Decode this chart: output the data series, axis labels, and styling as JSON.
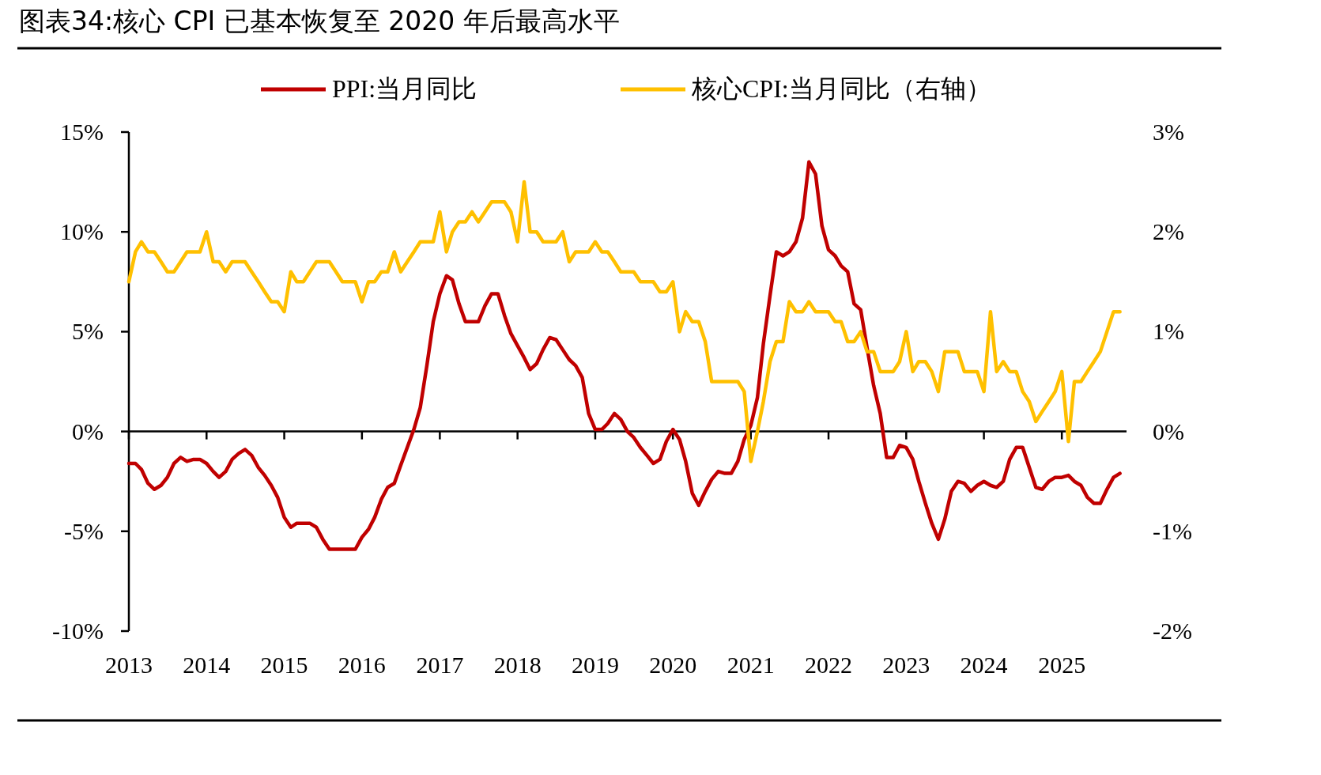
{
  "chart_data": {
    "type": "line",
    "title": "图表34:核心 CPI 已基本恢复至 2020 年后最高水平",
    "legend": "top",
    "x": [
      "2013-01",
      "2013-02",
      "2013-03",
      "2013-04",
      "2013-05",
      "2013-06",
      "2013-07",
      "2013-08",
      "2013-09",
      "2013-10",
      "2013-11",
      "2013-12",
      "2014-01",
      "2014-02",
      "2014-03",
      "2014-04",
      "2014-05",
      "2014-06",
      "2014-07",
      "2014-08",
      "2014-09",
      "2014-10",
      "2014-11",
      "2014-12",
      "2015-01",
      "2015-02",
      "2015-03",
      "2015-04",
      "2015-05",
      "2015-06",
      "2015-07",
      "2015-08",
      "2015-09",
      "2015-10",
      "2015-11",
      "2015-12",
      "2016-01",
      "2016-02",
      "2016-03",
      "2016-04",
      "2016-05",
      "2016-06",
      "2016-07",
      "2016-08",
      "2016-09",
      "2016-10",
      "2016-11",
      "2016-12",
      "2017-01",
      "2017-02",
      "2017-03",
      "2017-04",
      "2017-05",
      "2017-06",
      "2017-07",
      "2017-08",
      "2017-09",
      "2017-10",
      "2017-11",
      "2017-12",
      "2018-01",
      "2018-02",
      "2018-03",
      "2018-04",
      "2018-05",
      "2018-06",
      "2018-07",
      "2018-08",
      "2018-09",
      "2018-10",
      "2018-11",
      "2018-12",
      "2019-01",
      "2019-02",
      "2019-03",
      "2019-04",
      "2019-05",
      "2019-06",
      "2019-07",
      "2019-08",
      "2019-09",
      "2019-10",
      "2019-11",
      "2019-12",
      "2020-01",
      "2020-02",
      "2020-03",
      "2020-04",
      "2020-05",
      "2020-06",
      "2020-07",
      "2020-08",
      "2020-09",
      "2020-10",
      "2020-11",
      "2020-12",
      "2021-01",
      "2021-02",
      "2021-03",
      "2021-04",
      "2021-05",
      "2021-06",
      "2021-07",
      "2021-08",
      "2021-09",
      "2021-10",
      "2021-11",
      "2021-12",
      "2022-01",
      "2022-02",
      "2022-03",
      "2022-04",
      "2022-05",
      "2022-06",
      "2022-07",
      "2022-08",
      "2022-09",
      "2022-10",
      "2022-11",
      "2022-12",
      "2023-01",
      "2023-02",
      "2023-03",
      "2023-04",
      "2023-05",
      "2023-06",
      "2023-07",
      "2023-08",
      "2023-09",
      "2023-10",
      "2023-11",
      "2023-12",
      "2024-01",
      "2024-02",
      "2024-03",
      "2024-04",
      "2024-05",
      "2024-06",
      "2024-07",
      "2024-08",
      "2024-09",
      "2024-10",
      "2024-11",
      "2024-12",
      "2025-01",
      "2025-02",
      "2025-03",
      "2025-04",
      "2025-05",
      "2025-06",
      "2025-07",
      "2025-08",
      "2025-09",
      "2025-10"
    ],
    "xlim": [
      "2013-01",
      "2025-11"
    ],
    "xticks": [
      "2013",
      "2014",
      "2015",
      "2016",
      "2017",
      "2018",
      "2019",
      "2020",
      "2021",
      "2022",
      "2023",
      "2024",
      "2025"
    ],
    "ylim": [
      -10,
      15
    ],
    "yticks": [
      {
        "value": -10,
        "label": "-10%"
      },
      {
        "value": -5,
        "label": "-5%"
      },
      {
        "value": 0,
        "label": "0%"
      },
      {
        "value": 5,
        "label": "5%"
      },
      {
        "value": 10,
        "label": "10%"
      },
      {
        "value": 15,
        "label": "15%"
      }
    ],
    "y2lim": [
      -2,
      3
    ],
    "y2ticks": [
      {
        "value": -2,
        "label": "-2%"
      },
      {
        "value": -1,
        "label": "-1%"
      },
      {
        "value": 0,
        "label": "0%"
      },
      {
        "value": 1,
        "label": "1%"
      },
      {
        "value": 2,
        "label": "2%"
      },
      {
        "value": 3,
        "label": "3%"
      }
    ],
    "series": [
      {
        "name": "PPI:当月同比",
        "color": "#c00000",
        "values": [
          -1.6,
          -1.6,
          -1.9,
          -2.6,
          -2.9,
          -2.7,
          -2.3,
          -1.6,
          -1.3,
          -1.5,
          -1.4,
          -1.4,
          -1.6,
          -2.0,
          -2.3,
          -2.0,
          -1.4,
          -1.1,
          -0.9,
          -1.2,
          -1.8,
          -2.2,
          -2.7,
          -3.3,
          -4.3,
          -4.8,
          -4.6,
          -4.6,
          -4.6,
          -4.8,
          -5.4,
          -5.9,
          -5.9,
          -5.9,
          -5.9,
          -5.9,
          -5.3,
          -4.9,
          -4.3,
          -3.4,
          -2.8,
          -2.6,
          -1.7,
          -0.8,
          0.1,
          1.2,
          3.3,
          5.5,
          6.9,
          7.8,
          7.6,
          6.4,
          5.5,
          5.5,
          5.5,
          6.3,
          6.9,
          6.9,
          5.8,
          4.9,
          4.3,
          3.7,
          3.1,
          3.4,
          4.1,
          4.7,
          4.6,
          4.1,
          3.6,
          3.3,
          2.7,
          0.9,
          0.1,
          0.1,
          0.4,
          0.9,
          0.6,
          0.0,
          -0.3,
          -0.8,
          -1.2,
          -1.6,
          -1.4,
          -0.5,
          0.1,
          -0.4,
          -1.5,
          -3.1,
          -3.7,
          -3.0,
          -2.4,
          -2.0,
          -2.1,
          -2.1,
          -1.5,
          -0.4,
          0.3,
          1.7,
          4.4,
          6.8,
          9.0,
          8.8,
          9.0,
          9.5,
          10.7,
          13.5,
          12.9,
          10.3,
          9.1,
          8.8,
          8.3,
          8.0,
          6.4,
          6.1,
          4.2,
          2.3,
          0.9,
          -1.3,
          -1.3,
          -0.7,
          -0.8,
          -1.4,
          -2.5,
          -3.6,
          -4.6,
          -5.4,
          -4.4,
          -3.0,
          -2.5,
          -2.6,
          -3.0,
          -2.7,
          -2.5,
          -2.7,
          -2.8,
          -2.5,
          -1.4,
          -0.8,
          -0.8,
          -1.8,
          -2.8,
          -2.9,
          -2.5,
          -2.3,
          -2.3,
          -2.2,
          -2.5,
          -2.7,
          -3.3,
          -3.6,
          -3.6,
          -2.9,
          -2.3,
          -2.1
        ]
      },
      {
        "name": "核心CPI:当月同比（右轴）",
        "color": "#ffc000",
        "axis": "y2",
        "values": [
          1.5,
          1.8,
          1.9,
          1.8,
          1.8,
          1.7,
          1.6,
          1.6,
          1.7,
          1.8,
          1.8,
          1.8,
          2.0,
          1.7,
          1.7,
          1.6,
          1.7,
          1.7,
          1.7,
          1.6,
          1.5,
          1.4,
          1.3,
          1.3,
          1.2,
          1.6,
          1.5,
          1.5,
          1.6,
          1.7,
          1.7,
          1.7,
          1.6,
          1.5,
          1.5,
          1.5,
          1.3,
          1.5,
          1.5,
          1.6,
          1.6,
          1.8,
          1.6,
          1.7,
          1.8,
          1.9,
          1.9,
          1.9,
          2.2,
          1.8,
          2.0,
          2.1,
          2.1,
          2.2,
          2.1,
          2.2,
          2.3,
          2.3,
          2.3,
          2.2,
          1.9,
          2.5,
          2.0,
          2.0,
          1.9,
          1.9,
          1.9,
          2.0,
          1.7,
          1.8,
          1.8,
          1.8,
          1.9,
          1.8,
          1.8,
          1.7,
          1.6,
          1.6,
          1.6,
          1.5,
          1.5,
          1.5,
          1.4,
          1.4,
          1.5,
          1.0,
          1.2,
          1.1,
          1.1,
          0.9,
          0.5,
          0.5,
          0.5,
          0.5,
          0.5,
          0.4,
          -0.3,
          0.0,
          0.3,
          0.7,
          0.9,
          0.9,
          1.3,
          1.2,
          1.2,
          1.3,
          1.2,
          1.2,
          1.2,
          1.1,
          1.1,
          0.9,
          0.9,
          1.0,
          0.8,
          0.8,
          0.6,
          0.6,
          0.6,
          0.7,
          1.0,
          0.6,
          0.7,
          0.7,
          0.6,
          0.4,
          0.8,
          0.8,
          0.8,
          0.6,
          0.6,
          0.6,
          0.4,
          1.2,
          0.6,
          0.7,
          0.6,
          0.6,
          0.4,
          0.3,
          0.1,
          0.2,
          0.3,
          0.4,
          0.6,
          -0.1,
          0.5,
          0.5,
          0.6,
          0.7,
          0.8,
          1.0,
          1.2,
          1.2
        ]
      }
    ]
  }
}
